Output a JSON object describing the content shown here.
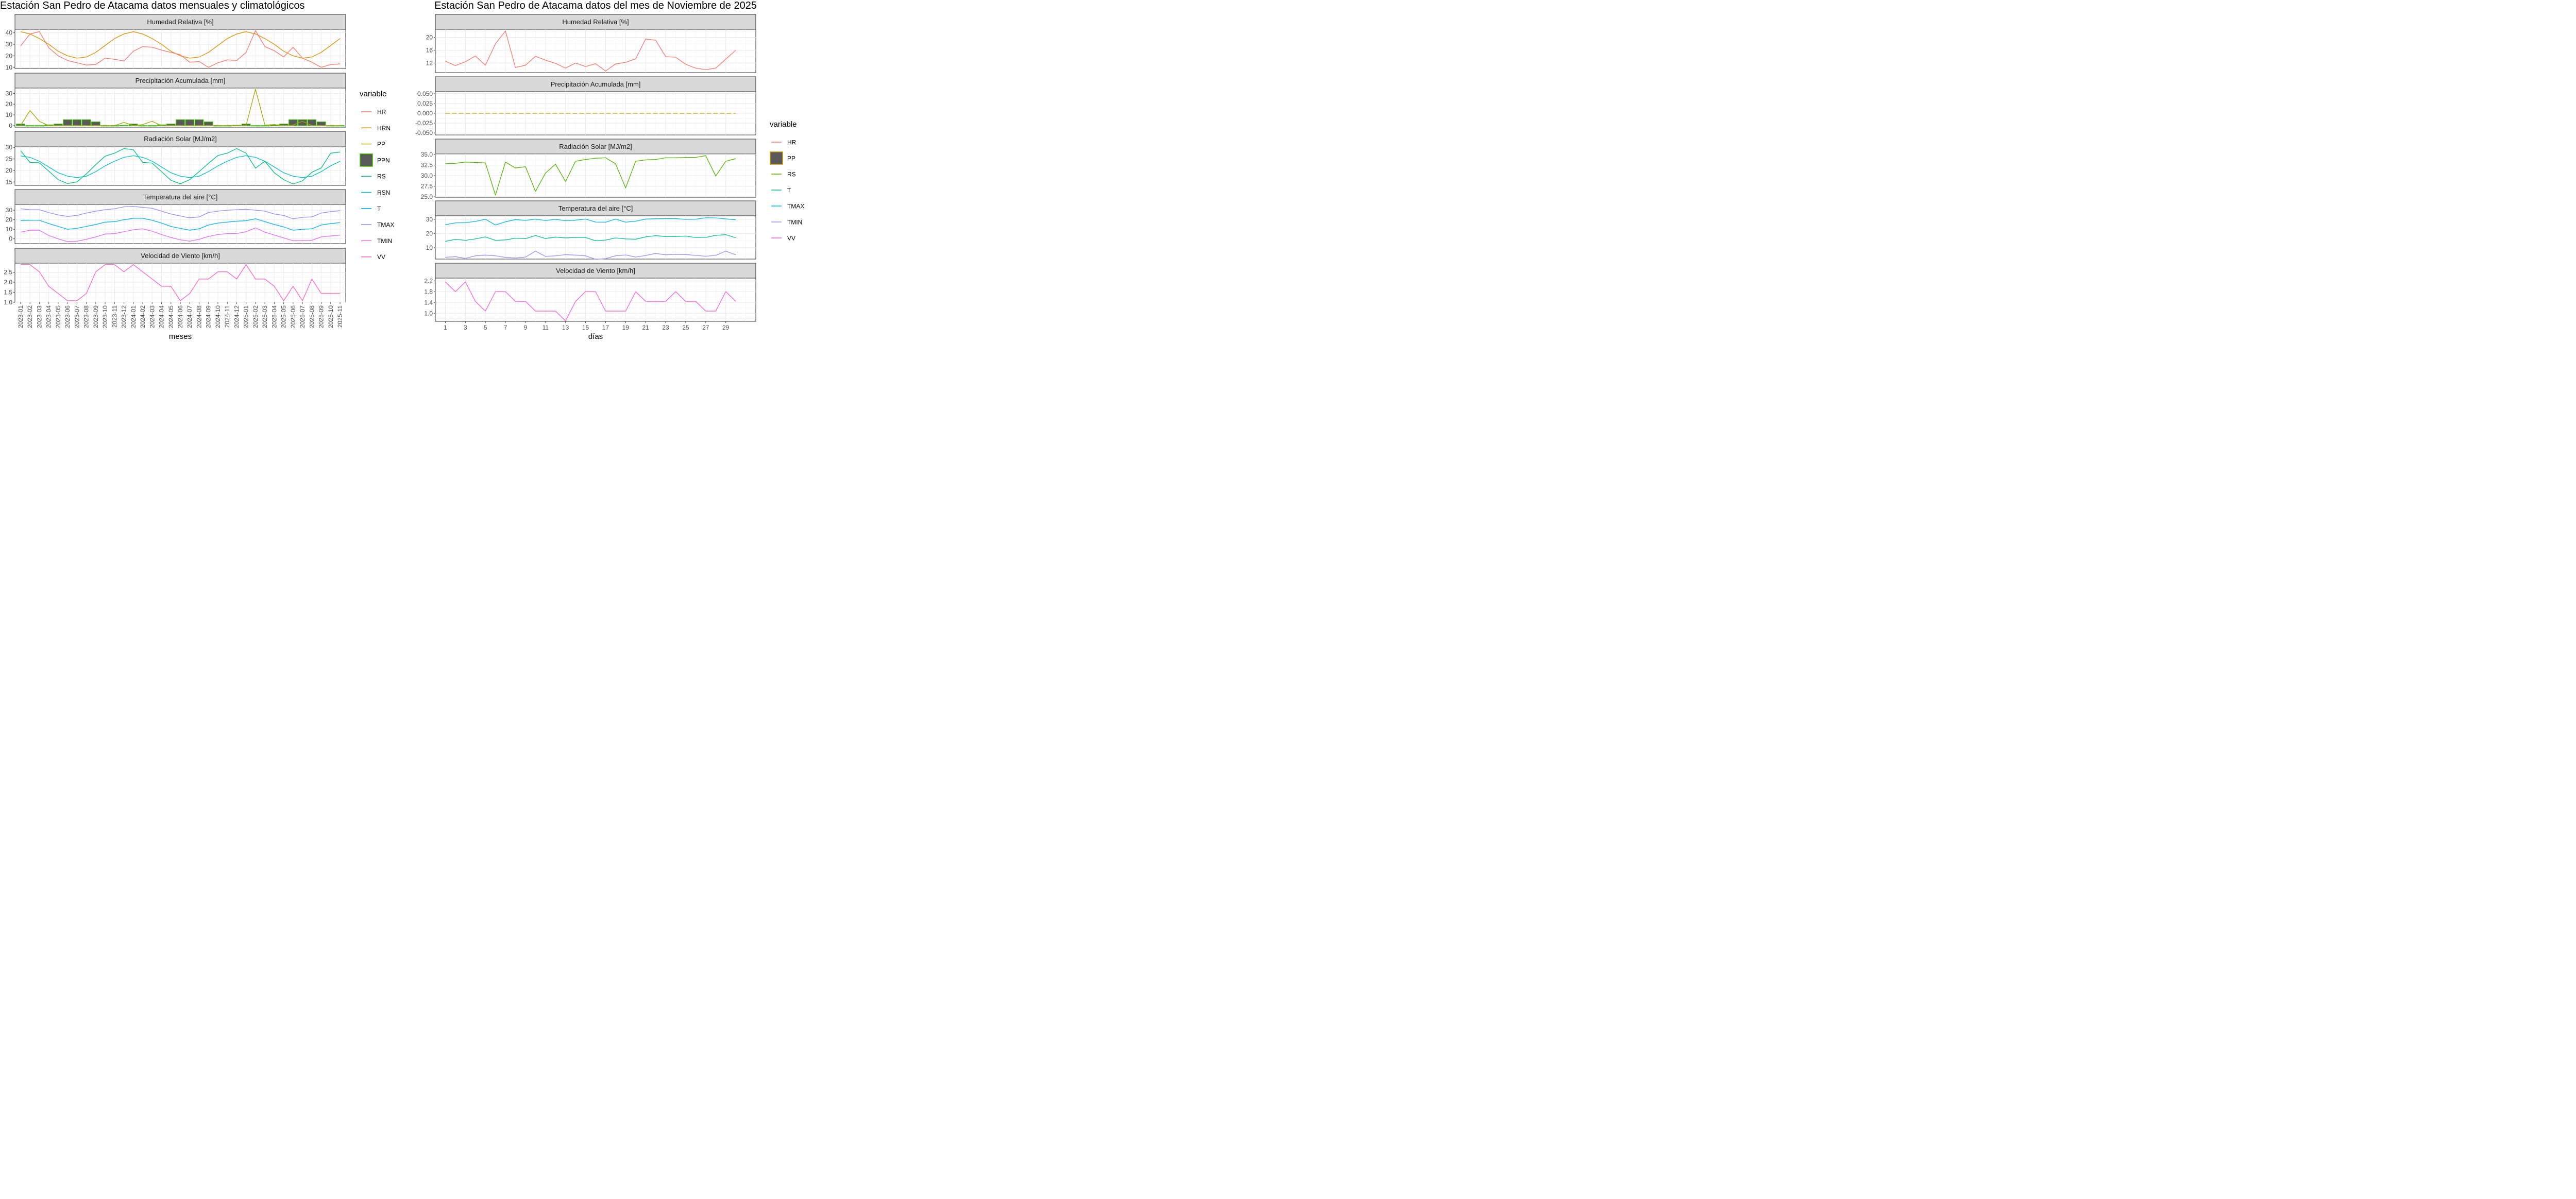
{
  "chart_data": [
    {
      "type": "line",
      "title": "Estación San Pedro de Atacama datos mensuales y climatológicos",
      "xlabel": "meses",
      "categories": [
        "2023-01",
        "2023-02",
        "2023-03",
        "2023-04",
        "2023-05",
        "2023-06",
        "2023-07",
        "2023-08",
        "2023-09",
        "2023-10",
        "2023-11",
        "2023-12",
        "2024-01",
        "2024-02",
        "2024-03",
        "2024-04",
        "2024-05",
        "2024-06",
        "2024-07",
        "2024-08",
        "2024-09",
        "2024-10",
        "2024-11",
        "2024-12",
        "2025-01",
        "2025-02",
        "2025-03",
        "2025-04",
        "2025-05",
        "2025-06",
        "2025-07",
        "2025-08",
        "2025-09",
        "2025-10",
        "2025-11"
      ],
      "panels": [
        {
          "strip": "Humedad Relativa [%]",
          "ylim": [
            9,
            43
          ],
          "yticks": [
            10,
            20,
            30,
            40
          ],
          "ytick_labels": [
            "10",
            "20",
            "30",
            "40"
          ],
          "series": [
            {
              "name": "HRN",
              "values": [
                41,
                39,
                35,
                30,
                24,
                20,
                18,
                19,
                23,
                29,
                35,
                39,
                41,
                39,
                35,
                30,
                24,
                20,
                18,
                19,
                23,
                29,
                35,
                39,
                41,
                39,
                35,
                30,
                24,
                20,
                18,
                19,
                23,
                29,
                35
              ]
            },
            {
              "name": "HR",
              "values": [
                28.5,
                39,
                41,
                27,
                20,
                16,
                14,
                12,
                12.5,
                18,
                17,
                15.5,
                24,
                28,
                27.5,
                25,
                23,
                21,
                14.5,
                15,
                10,
                14,
                16.5,
                16,
                23,
                42,
                28,
                24.5,
                19,
                27.5,
                18,
                14.5,
                10,
                12.5,
                13
              ]
            }
          ]
        },
        {
          "strip": "Precipitación Acumulada [mm]",
          "ylim": [
            -1.5,
            35
          ],
          "yticks": [
            0,
            10,
            20,
            30
          ],
          "ytick_labels": [
            "0",
            "10",
            "20",
            "30"
          ],
          "bars": {
            "name": "PPN",
            "values": [
              1.5,
              0,
              0,
              0.7,
              1.5,
              5.5,
              5.5,
              5.5,
              3.5,
              0,
              0,
              0.3,
              1.5,
              0,
              0,
              0.7,
              1.5,
              5.5,
              5.5,
              5.5,
              3.5,
              0,
              0,
              0.3,
              1.5,
              0,
              0,
              0.7,
              1.5,
              5.5,
              5.5,
              5.5,
              3.5,
              0,
              0
            ]
          },
          "series": [
            {
              "name": "PP",
              "values": [
                0,
                14,
                4,
                0,
                0,
                0,
                0,
                0,
                0,
                0,
                0,
                3,
                0,
                1,
                4,
                0,
                0,
                0,
                0,
                0,
                0,
                0,
                0,
                0,
                0,
                34,
                0.5,
                1,
                0,
                0.5,
                4,
                0,
                0,
                0,
                0
              ]
            }
          ]
        },
        {
          "strip": "Radiación Solar [MJ/m2]",
          "ylim": [
            13.5,
            30.5
          ],
          "yticks": [
            15,
            20,
            25,
            30
          ],
          "ytick_labels": [
            "15",
            "20",
            "25",
            "30"
          ],
          "series": [
            {
              "name": "RSN",
              "values": [
                26.3,
                25.7,
                24,
                21.5,
                19,
                17.5,
                16.9,
                17.5,
                19.5,
                22,
                24,
                25.7,
                26.4,
                25.7,
                24,
                21.5,
                19,
                17.5,
                16.9,
                17.5,
                19.5,
                22,
                24,
                25.7,
                26.4,
                25.7,
                24,
                21.5,
                19,
                17.5,
                16.9,
                17.5,
                19.5,
                22,
                24
              ]
            },
            {
              "name": "RS",
              "values": [
                28.6,
                23.5,
                23.3,
                19.7,
                16,
                14.3,
                15,
                18.5,
                22.5,
                26.2,
                27.5,
                29.5,
                29,
                23.5,
                23.2,
                19.5,
                15.7,
                14.2,
                16,
                19.5,
                23.1,
                26.5,
                27.5,
                29.5,
                27.5,
                21,
                24,
                19,
                16,
                14.1,
                15.5,
                19.2,
                21.1,
                27.5,
                28
              ]
            }
          ]
        },
        {
          "strip": "Temperatura del aire [°C]",
          "ylim": [
            -5,
            36
          ],
          "yticks": [
            0,
            10,
            20,
            30
          ],
          "ytick_labels": [
            "0",
            "10",
            "20",
            "30"
          ],
          "series": [
            {
              "name": "TMAX",
              "values": [
                31.5,
                30.5,
                30.5,
                27.5,
                25,
                23.5,
                24.5,
                27,
                29,
                30.5,
                31.5,
                33.5,
                34,
                33,
                32,
                29,
                26,
                24,
                22,
                23,
                27.5,
                29,
                30,
                30.5,
                31,
                30,
                29,
                26,
                24.5,
                21,
                22.5,
                23,
                27,
                28.5,
                29.5
              ]
            },
            {
              "name": "T",
              "values": [
                19,
                19.5,
                19.5,
                16,
                13,
                10,
                11,
                13,
                15,
                17.5,
                18,
                20,
                21.5,
                21.5,
                19.5,
                16.5,
                13,
                11,
                9,
                10.5,
                14.5,
                16.5,
                17.5,
                18.5,
                19,
                21,
                18,
                15,
                12.5,
                9,
                10,
                10.5,
                14.5,
                16,
                17
              ]
            },
            {
              "name": "TMIN",
              "values": [
                7,
                9,
                9,
                3.5,
                0,
                -3,
                -2.5,
                -0.5,
                2,
                5,
                5.5,
                7.5,
                9.5,
                10.5,
                8,
                4.5,
                1.5,
                -1,
                -2.5,
                -0.5,
                2.5,
                4.5,
                5.5,
                5.5,
                7.5,
                11.5,
                7,
                4,
                1,
                -2,
                -2,
                -1.5,
                2,
                3,
                4
              ]
            }
          ]
        },
        {
          "strip": "Velocidad de Viento [km/h]",
          "ylim": [
            1.0,
            2.95
          ],
          "yticks": [
            1.0,
            1.5,
            2.0,
            2.5
          ],
          "ytick_labels": [
            "1.0",
            "1.5",
            "2.0",
            "2.5"
          ],
          "series": [
            {
              "name": "VV",
              "values": [
                2.88,
                2.88,
                2.52,
                1.8,
                1.44,
                1.08,
                1.08,
                1.44,
                2.52,
                2.88,
                2.88,
                2.52,
                2.88,
                2.52,
                2.16,
                1.8,
                1.8,
                1.08,
                1.44,
                2.16,
                2.16,
                2.52,
                2.52,
                2.16,
                2.88,
                2.16,
                2.16,
                1.8,
                1.08,
                1.8,
                1.08,
                2.16,
                1.44,
                1.44,
                1.44
              ]
            }
          ]
        }
      ],
      "legend": {
        "title": "variable",
        "position": "right",
        "entries": [
          "HR",
          "HRN",
          "PP",
          "PPN",
          "RS",
          "RSN",
          "T",
          "TMAX",
          "TMIN",
          "VV"
        ]
      }
    },
    {
      "type": "line",
      "title": "Estación San Pedro de Atacama datos del mes de Noviembre de 2025",
      "xlabel": "días",
      "x": [
        1,
        2,
        3,
        4,
        5,
        6,
        7,
        8,
        9,
        10,
        11,
        12,
        13,
        14,
        15,
        16,
        17,
        18,
        19,
        20,
        21,
        22,
        23,
        24,
        25,
        26,
        27,
        28,
        29,
        30
      ],
      "xticks": [
        1,
        3,
        5,
        7,
        9,
        11,
        13,
        15,
        17,
        19,
        21,
        23,
        25,
        27,
        29
      ],
      "xlim": [
        0,
        32
      ],
      "panels": [
        {
          "strip": "Humedad Relativa [%]",
          "ylim": [
            9,
            22.5
          ],
          "yticks": [
            12,
            16,
            20
          ],
          "ytick_labels": [
            "12",
            "16",
            "20"
          ],
          "series": [
            {
              "name": "HR",
              "values": [
                12.6,
                11.2,
                12.4,
                14.2,
                11.3,
                18,
                22,
                10.6,
                11.3,
                14.1,
                12.9,
                11.9,
                10.4,
                12,
                10.9,
                11.8,
                9.5,
                11.7,
                12.2,
                13.3,
                19.5,
                19.1,
                14,
                13.8,
                11.6,
                10.4,
                9.9,
                10.4,
                13.2,
                16
              ]
            }
          ]
        },
        {
          "strip": "Precipitación Acumulada [mm]",
          "ylim": [
            -0.055,
            0.055
          ],
          "yticks": [
            -0.05,
            -0.025,
            0,
            0.025,
            0.05
          ],
          "ytick_labels": [
            "-0.050",
            "-0.025",
            "0.000",
            "0.025",
            "0.050"
          ],
          "series": [
            {
              "name": "PP",
              "values": [
                0,
                0,
                0,
                0,
                0,
                0,
                0,
                0,
                0,
                0,
                0,
                0,
                0,
                0,
                0,
                0,
                0,
                0,
                0,
                0,
                0,
                0,
                0,
                0,
                0,
                0,
                0,
                0,
                0,
                0
              ],
              "dashed": true
            }
          ]
        },
        {
          "strip": "Radiación Solar [MJ/m2]",
          "ylim": [
            24.9,
            35.1
          ],
          "yticks": [
            25.0,
            27.5,
            30.0,
            32.5,
            35.0
          ],
          "ytick_labels": [
            "25.0",
            "27.5",
            "30.0",
            "32.5",
            "35.0"
          ],
          "series": [
            {
              "name": "RS",
              "values": [
                32.8,
                32.9,
                33.2,
                33.1,
                33,
                25.4,
                33.2,
                31.8,
                32.1,
                26.3,
                30.6,
                32.7,
                28.6,
                33.4,
                33.8,
                34.1,
                34.2,
                32.8,
                27.1,
                33.4,
                33.7,
                33.8,
                34.2,
                34.2,
                34.3,
                34.3,
                34.7,
                29.9,
                33.4,
                34
              ]
            }
          ]
        },
        {
          "strip": "Temperatura del aire [°C]",
          "ylim": [
            2,
            32.5
          ],
          "yticks": [
            10,
            20,
            30
          ],
          "ytick_labels": [
            "10",
            "20",
            "30"
          ],
          "series": [
            {
              "name": "TMAX",
              "values": [
                26.2,
                27.5,
                27.7,
                28.5,
                30.1,
                26,
                28.3,
                29.8,
                29.3,
                30.1,
                29.2,
                30,
                29,
                29.4,
                30.2,
                28.1,
                28,
                30.2,
                28,
                28.7,
                30.2,
                30.4,
                30.5,
                30.5,
                30,
                30.1,
                31.1,
                31,
                30.3,
                29.7
              ]
            },
            {
              "name": "T",
              "values": [
                14.5,
                15.9,
                15.2,
                16.2,
                17.6,
                15.2,
                15.5,
                16.7,
                16.4,
                18.6,
                16.5,
                17.5,
                16.9,
                17.2,
                17.2,
                14.9,
                15.4,
                16.9,
                16.2,
                16,
                17.6,
                18.5,
                17.9,
                17.9,
                18.2,
                17.2,
                17.3,
                18.7,
                19.2,
                17
              ]
            },
            {
              "name": "TMIN",
              "values": [
                3.2,
                3.7,
                2.5,
                4.3,
                4.8,
                4.3,
                3.2,
                2.7,
                3.4,
                7.6,
                3.9,
                4.3,
                5.1,
                4.8,
                4.3,
                1.8,
                2.3,
                4.3,
                4.9,
                3.4,
                4.5,
                6,
                5,
                5.3,
                5.2,
                4.6,
                4,
                4.6,
                7.6,
                5
              ]
            }
          ]
        },
        {
          "strip": "Velocidad de Viento [km/h]",
          "ylim": [
            0.7,
            2.3
          ],
          "yticks": [
            1.0,
            1.4,
            1.8,
            2.2
          ],
          "ytick_labels": [
            "1.0",
            "1.4",
            "1.8",
            "2.2"
          ],
          "series": [
            {
              "name": "VV",
              "values": [
                2.16,
                1.8,
                2.16,
                1.44,
                1.08,
                1.8,
                1.8,
                1.44,
                1.44,
                1.08,
                1.08,
                1.08,
                0.72,
                1.44,
                1.8,
                1.8,
                1.08,
                1.08,
                1.08,
                1.8,
                1.44,
                1.44,
                1.44,
                1.8,
                1.44,
                1.44,
                1.08,
                1.08,
                1.8,
                1.44
              ]
            }
          ]
        }
      ],
      "legend": {
        "title": "variable",
        "position": "right",
        "entries": [
          "HR",
          "PP",
          "RS",
          "T",
          "TMAX",
          "TMIN",
          "VV"
        ]
      }
    }
  ],
  "colors": {
    "left": {
      "HR": "#F8766D",
      "HRN": "#D89000",
      "PP": "#A3A500",
      "PPN_fill": "#595959",
      "PPN_border": "#39B600",
      "RS": "#00BF7D",
      "RSN": "#00BFC4",
      "T": "#00B0F6",
      "TMAX": "#9590FF",
      "TMIN": "#E76BF3",
      "VV": "#FF62BC"
    },
    "right": {
      "HR": "#F8766D",
      "PP_fill": "#595959",
      "PP_border": "#C49A00",
      "PP": "#C49A00",
      "RS": "#53B400",
      "T": "#00C094",
      "TMAX": "#00B6EB",
      "TMIN": "#A58AFF",
      "VV": "#FB61D7"
    }
  }
}
